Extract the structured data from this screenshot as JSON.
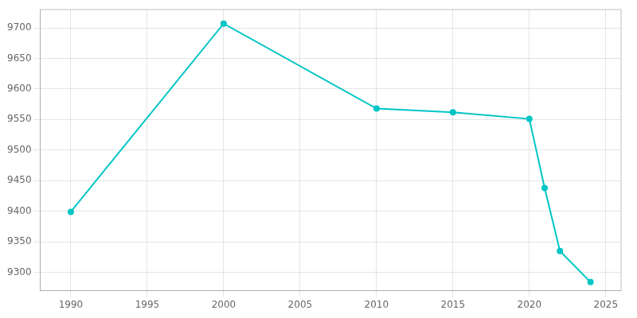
{
  "chart_data": {
    "type": "line",
    "x": [
      1990,
      2000,
      2010,
      2015,
      2020,
      2021,
      2022,
      2024
    ],
    "values": [
      9399,
      9707,
      9568,
      9562,
      9551,
      9438,
      9335,
      9284
    ],
    "color": "#00C5C5",
    "marker": "circle",
    "xlim": [
      1988,
      2026
    ],
    "ylim": [
      9270,
      9730
    ],
    "xticks": [
      1990,
      1995,
      2000,
      2005,
      2010,
      2015,
      2020,
      2025
    ],
    "yticks": [
      9300,
      9350,
      9400,
      9450,
      9500,
      9550,
      9600,
      9650,
      9700
    ],
    "grid": true
  }
}
